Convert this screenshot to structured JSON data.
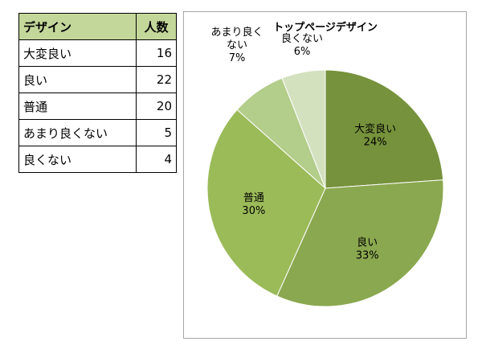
{
  "table": {
    "headers": [
      "デザイン",
      "人数"
    ],
    "rows": [
      {
        "label": "大変良い",
        "count": "16"
      },
      {
        "label": "良い",
        "count": "22"
      },
      {
        "label": "普通",
        "count": "20"
      },
      {
        "label": "あまり良くない",
        "count": "5"
      },
      {
        "label": "良くない",
        "count": "4"
      }
    ]
  },
  "chart_data": {
    "type": "pie",
    "title": "トップページデザイン",
    "categories": [
      "大変良い",
      "良い",
      "普通",
      "あまり良くない",
      "良くない"
    ],
    "values": [
      16,
      22,
      20,
      5,
      4
    ],
    "percent_labels": [
      "24%",
      "33%",
      "30%",
      "7%",
      "6%"
    ],
    "colors": [
      "#76923c",
      "#8aa84f",
      "#9bbb59",
      "#b3cd8a",
      "#d3e1bf"
    ],
    "label_placement": [
      "inside",
      "inside",
      "inside",
      "outside",
      "outside"
    ]
  }
}
